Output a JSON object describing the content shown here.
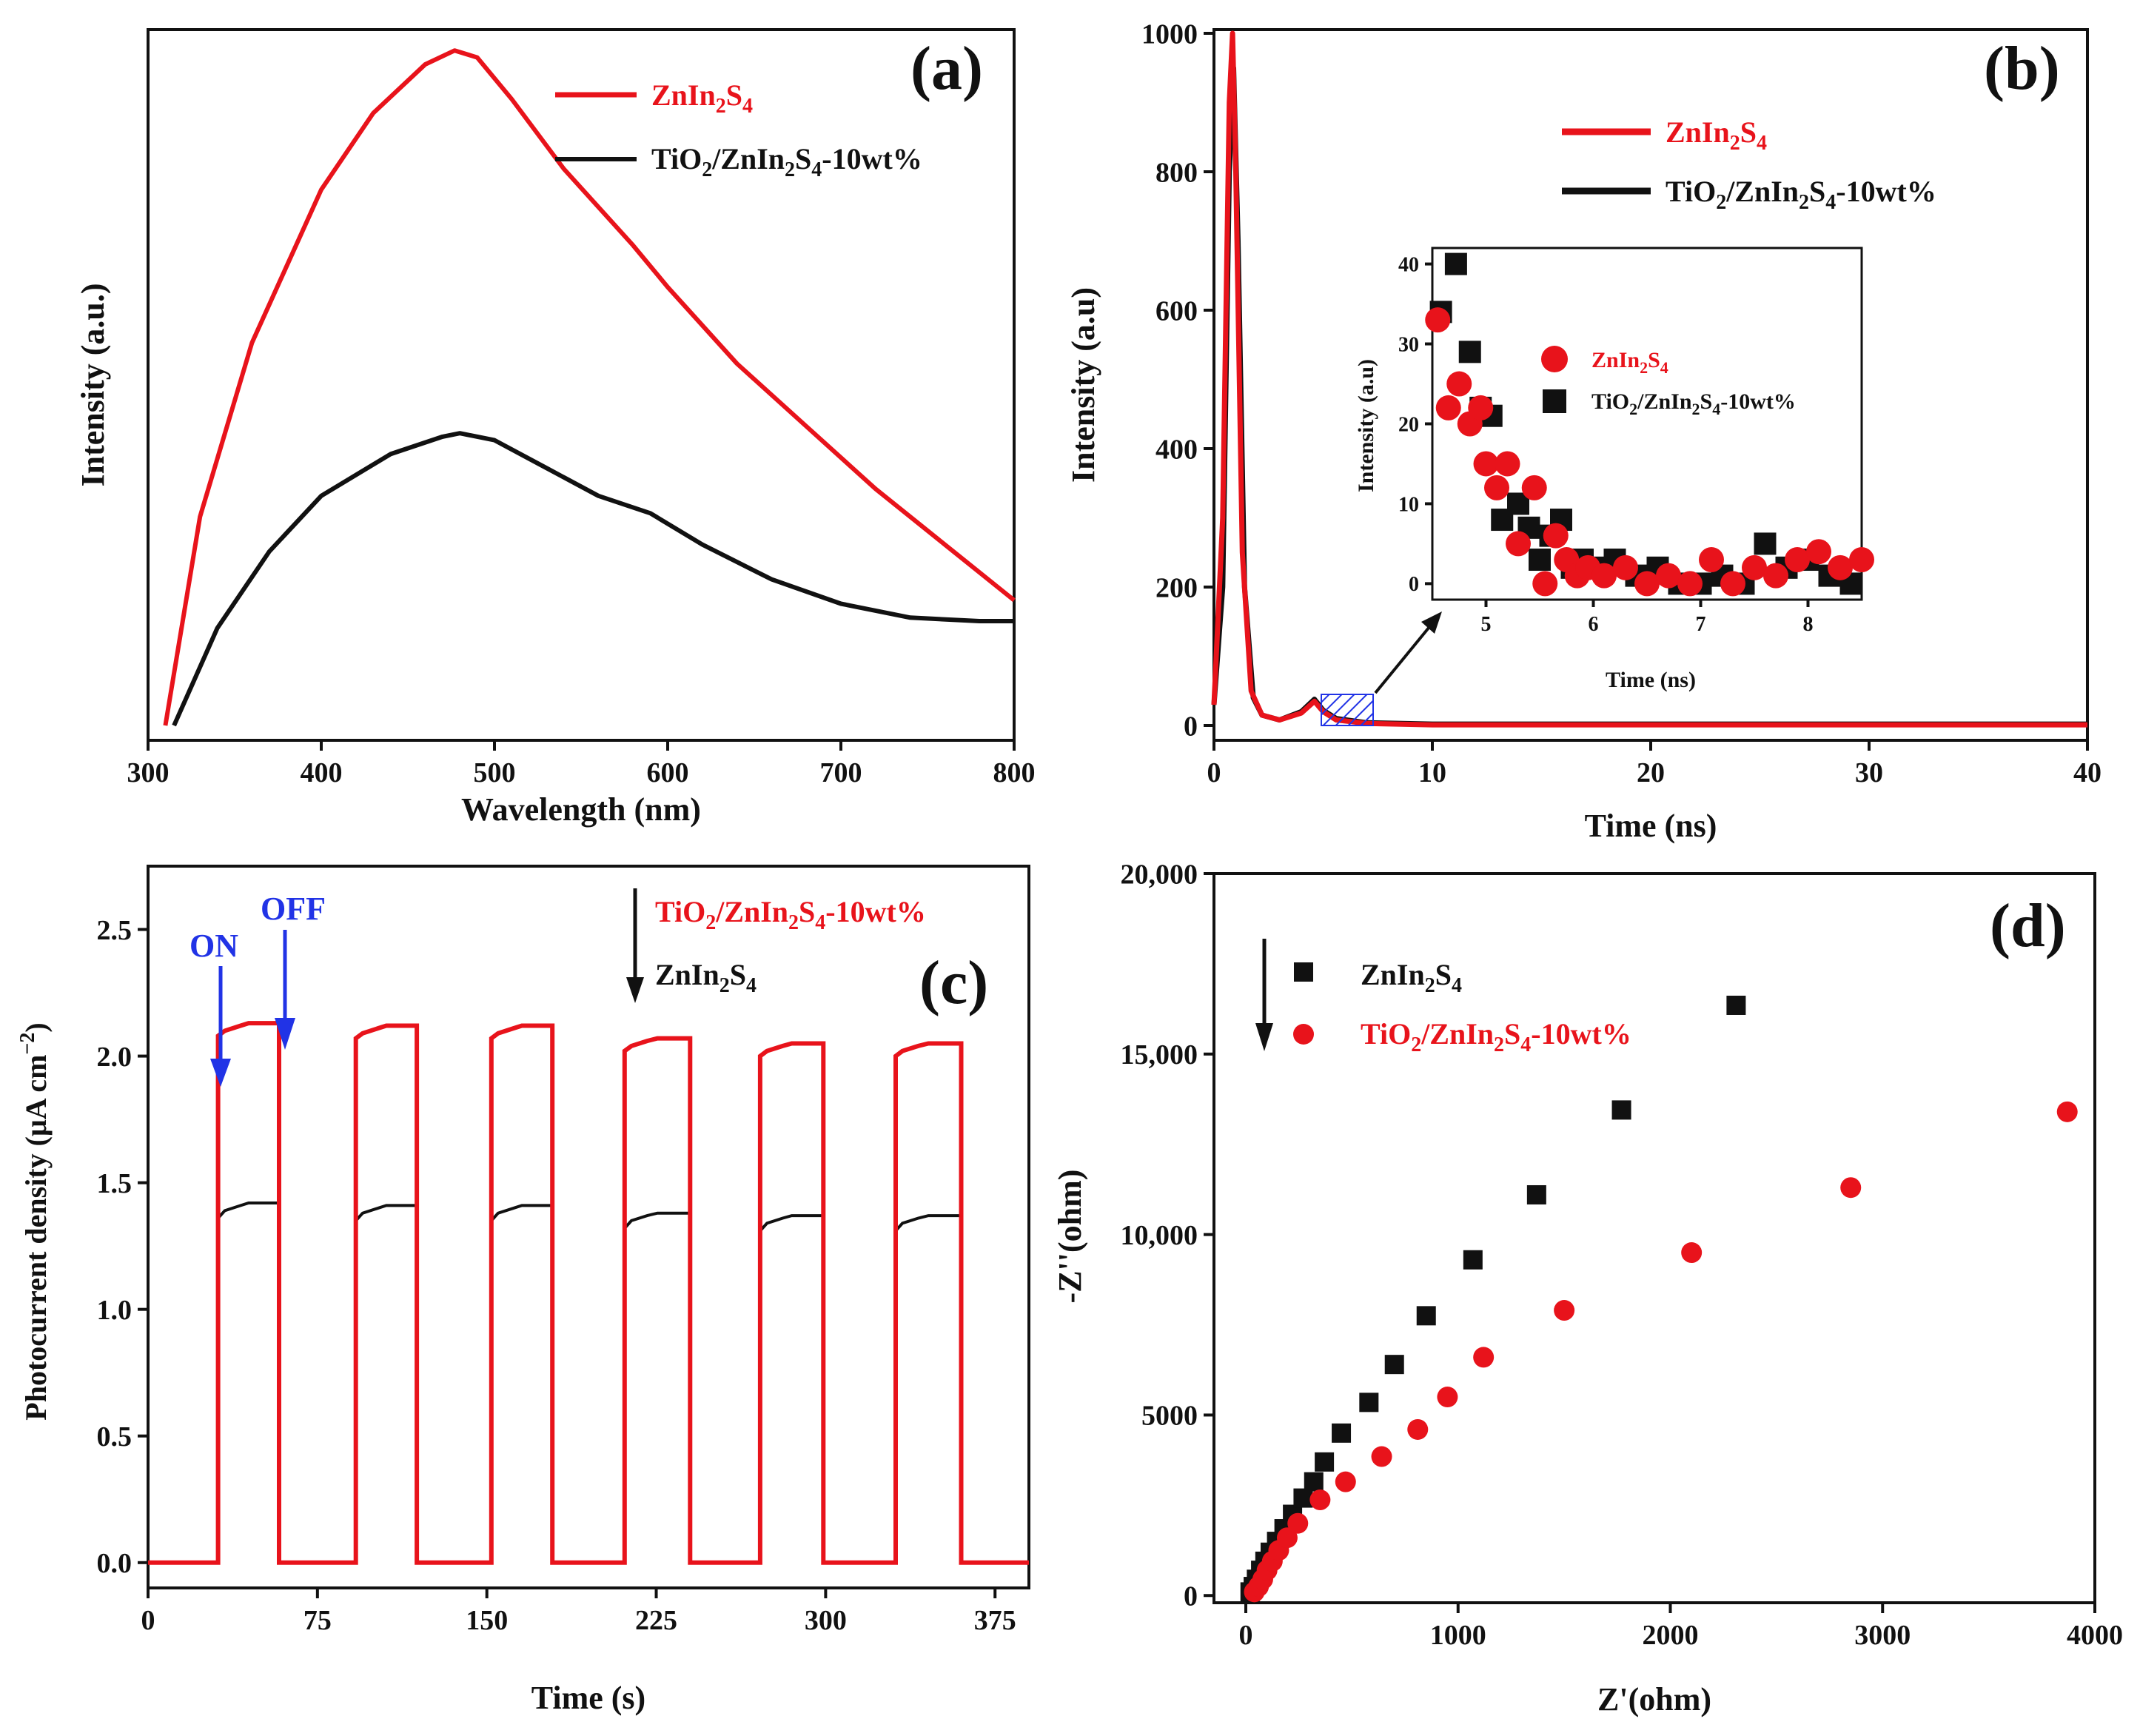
{
  "colors": {
    "red": "#e8131b",
    "black": "#111111",
    "blue": "#2133e6"
  },
  "chart_data": [
    {
      "panel": "(a)",
      "type": "line",
      "xlabel": "Wavelength (nm)",
      "ylabel": "Intensity (a.u.)",
      "xlim": [
        300,
        800
      ],
      "xticks": [
        300,
        400,
        500,
        600,
        700,
        800
      ],
      "ylim": [
        0,
        100
      ],
      "yticks_hidden": true,
      "legend": [
        "ZnIn₂S₄",
        "TiO₂/ZnIn₂S₄-10wt%"
      ],
      "series": [
        {
          "name": "ZnIn₂S₄",
          "color": "#e8131b",
          "x": [
            310,
            330,
            360,
            400,
            430,
            460,
            477,
            490,
            510,
            540,
            580,
            600,
            640,
            680,
            720,
            760,
            800
          ],
          "y": [
            0,
            30,
            55,
            77,
            88,
            95,
            97,
            96,
            90,
            80,
            69,
            63,
            52,
            43,
            34,
            26,
            18
          ]
        },
        {
          "name": "TiO₂/ZnIn₂S₄-10wt%",
          "color": "#111111",
          "x": [
            315,
            340,
            370,
            400,
            440,
            470,
            480,
            500,
            530,
            560,
            590,
            620,
            660,
            700,
            740,
            780,
            800
          ],
          "y": [
            0,
            14,
            25,
            33,
            39,
            41.5,
            42,
            41,
            37,
            33,
            30.5,
            26,
            21,
            17.5,
            15.5,
            15,
            15
          ]
        }
      ]
    },
    {
      "panel": "(b)",
      "type": "line",
      "xlabel": "Time (ns)",
      "ylabel": "Intensity (a.u)",
      "xlim": [
        0,
        40
      ],
      "xticks": [
        0,
        10,
        20,
        30,
        40
      ],
      "ylim": [
        0,
        1000
      ],
      "yticks": [
        0,
        200,
        400,
        600,
        800,
        1000
      ],
      "legend": [
        "ZnIn₂S₄",
        "TiO₂/ZnIn₂S₄-10wt%"
      ],
      "series": [
        {
          "name": "TiO₂/ZnIn₂S₄-10wt%",
          "color": "#111111",
          "x": [
            0,
            0.4,
            0.7,
            0.9,
            1.1,
            1.4,
            1.8,
            2.2,
            3,
            4,
            4.6,
            5,
            5.6,
            7,
            10,
            20,
            30,
            40
          ],
          "y": [
            30,
            200,
            800,
            950,
            700,
            200,
            40,
            15,
            8,
            20,
            38,
            22,
            10,
            4,
            2,
            2,
            2,
            2
          ]
        },
        {
          "name": "ZnIn₂S₄",
          "color": "#e8131b",
          "x": [
            0,
            0.4,
            0.7,
            0.85,
            1.0,
            1.3,
            1.7,
            2.2,
            3,
            4,
            4.6,
            5,
            5.6,
            7,
            10,
            20,
            30,
            40
          ],
          "y": [
            30,
            300,
            900,
            1000,
            800,
            250,
            50,
            15,
            8,
            18,
            35,
            20,
            8,
            3,
            1,
            1,
            1,
            1
          ]
        }
      ],
      "inset": {
        "xlabel": "Time (ns)",
        "ylabel": "Intensity (a.u)",
        "xlim": [
          4.5,
          8.5
        ],
        "xticks": [
          5,
          6,
          7,
          8
        ],
        "ylim": [
          -2,
          42
        ],
        "yticks": [
          0,
          10,
          20,
          30,
          40
        ],
        "legend": [
          "ZnIn₂S₄",
          "TiO₂/ZnIn₂S₄-10wt%"
        ],
        "series": [
          {
            "name": "TiO₂/ZnIn₂S₄-10wt%",
            "marker": "square",
            "color": "#111111",
            "x": [
              4.58,
              4.72,
              4.85,
              4.95,
              5.05,
              5.15,
              5.3,
              5.4,
              5.5,
              5.6,
              5.7,
              5.8,
              5.9,
              6.0,
              6.2,
              6.4,
              6.6,
              6.8,
              7.0,
              7.2,
              7.4,
              7.6,
              7.8,
              8.0,
              8.2,
              8.4
            ],
            "y": [
              34,
              40,
              29,
              22,
              21,
              8,
              10,
              7,
              3,
              6,
              8,
              2,
              3,
              2,
              3,
              1,
              2,
              0,
              0,
              1,
              0,
              5,
              2,
              3,
              1,
              0
            ]
          },
          {
            "name": "ZnIn₂S₄",
            "marker": "circle",
            "color": "#e8131b",
            "x": [
              4.55,
              4.65,
              4.75,
              4.85,
              4.95,
              5.0,
              5.1,
              5.2,
              5.3,
              5.45,
              5.55,
              5.65,
              5.75,
              5.85,
              5.95,
              6.1,
              6.3,
              6.5,
              6.7,
              6.9,
              7.1,
              7.3,
              7.5,
              7.7,
              7.9,
              8.1,
              8.3,
              8.5
            ],
            "y": [
              33,
              22,
              25,
              20,
              22,
              15,
              12,
              15,
              5,
              12,
              0,
              6,
              3,
              1,
              2,
              1,
              2,
              0,
              1,
              0,
              3,
              0,
              2,
              1,
              3,
              4,
              2,
              3
            ]
          }
        ]
      },
      "inset_annotation": "hatched region at 4.5-7 ns enlarged in inset"
    },
    {
      "panel": "(c)",
      "type": "line",
      "xlabel": "Time (s)",
      "ylabel": "Photocurrent density (μA cm⁻²)",
      "xlim": [
        0,
        390
      ],
      "xticks": [
        0,
        75,
        150,
        225,
        300,
        375
      ],
      "ylim": [
        -0.1,
        2.75
      ],
      "yticks": [
        0.0,
        0.5,
        1.0,
        1.5,
        2.0,
        2.5
      ],
      "annotations": [
        "ON",
        "OFF"
      ],
      "legend": [
        "TiO₂/ZnIn₂S₄-10wt%",
        "ZnIn₂S₄"
      ],
      "on_off_cycles_s": [
        [
          31,
          58
        ],
        [
          92,
          119
        ],
        [
          152,
          179
        ],
        [
          211,
          240
        ],
        [
          271,
          299
        ],
        [
          331,
          360
        ]
      ],
      "series": [
        {
          "name": "TiO₂/ZnIn₂S₄-10wt%",
          "color": "#e8131b",
          "plateau": [
            2.13,
            2.12,
            2.12,
            2.07,
            2.05,
            2.05
          ]
        },
        {
          "name": "ZnIn₂S₄",
          "color": "#111111",
          "plateau": [
            1.42,
            1.41,
            1.41,
            1.38,
            1.37,
            1.37
          ]
        }
      ]
    },
    {
      "panel": "(d)",
      "type": "scatter",
      "xlabel": "Z'(ohm)",
      "ylabel": "-Z''(ohm)",
      "xlim": [
        -150,
        4000
      ],
      "xticks": [
        0,
        1000,
        2000,
        3000,
        4000
      ],
      "ylim": [
        -200,
        20000
      ],
      "yticks": [
        0,
        5000,
        10000,
        15000,
        20000
      ],
      "ytick_labels": [
        "0",
        "5000",
        "10,000",
        "15,000",
        "20,000"
      ],
      "legend": [
        "ZnIn₂S₄",
        "TiO₂/ZnIn₂S₄-10wt%"
      ],
      "series": [
        {
          "name": "ZnIn₂S₄",
          "marker": "square",
          "color": "#111111",
          "x": [
            20,
            35,
            50,
            70,
            90,
            115,
            145,
            180,
            220,
            270,
            320,
            370,
            450,
            580,
            700,
            850,
            1070,
            1370,
            1770,
            2310
          ],
          "y": [
            100,
            250,
            450,
            700,
            950,
            1200,
            1500,
            1850,
            2250,
            2700,
            3150,
            3700,
            4500,
            5350,
            6400,
            7750,
            9300,
            11100,
            13450,
            16350
          ]
        },
        {
          "name": "TiO₂/ZnIn₂S₄-10wt%",
          "marker": "circle",
          "color": "#e8131b",
          "x": [
            40,
            60,
            80,
            100,
            125,
            155,
            195,
            245,
            350,
            470,
            640,
            810,
            950,
            1120,
            1500,
            2100,
            2850,
            3870
          ],
          "y": [
            100,
            250,
            450,
            700,
            950,
            1250,
            1600,
            2000,
            2650,
            3150,
            3850,
            4600,
            5500,
            6600,
            7900,
            9500,
            11300,
            13400
          ]
        }
      ]
    }
  ],
  "labels": {
    "a": {
      "panel": "(a)",
      "ylabel": "Intensity (a.u.)",
      "xlabel": "Wavelength (nm)",
      "leg1_main": "ZnIn",
      "leg1_s1": "2",
      "leg1_mid": "S",
      "leg1_s2": "4",
      "leg2_p1": "TiO",
      "leg2_s1": "2",
      "leg2_p2": "/ZnIn",
      "leg2_s2": "2",
      "leg2_p3": "S",
      "leg2_s3": "4",
      "leg2_p4": "-10wt%"
    },
    "b": {
      "panel": "(b)",
      "ylabel": "Intensity (a.u)",
      "xlabel": "Time (ns)"
    },
    "c": {
      "panel": "(c)",
      "xlabel": "Time (s)",
      "on": "ON",
      "off": "OFF"
    },
    "d": {
      "panel": "(d)",
      "xlabel": "Z'(ohm)",
      "ylabel": "-Z''(ohm)"
    }
  }
}
